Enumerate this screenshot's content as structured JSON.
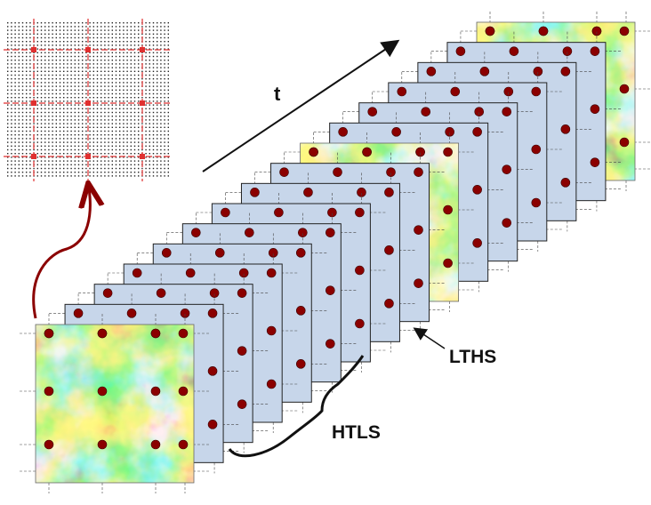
{
  "labels": {
    "time_axis": "t",
    "ltns": "LTHS",
    "htls": "HTLS"
  },
  "colors": {
    "sample_point": "#8b0000",
    "coarse_grid_line": "#e03030",
    "fine_grid_dot": "#222222",
    "frame_fill": "#c7d6ea",
    "frame_stroke": "#222222",
    "dashed_grid": "#444444",
    "arrow": "#111111",
    "curved_arrow": "#8b0000",
    "field_colormap": [
      "#1a2fd6",
      "#2a86e8",
      "#39d3e0",
      "#4fe08a",
      "#c8f23a",
      "#ffd23a",
      "#f57a2a",
      "#c82a1a"
    ]
  },
  "diagram": {
    "frame_count_behind": 14,
    "coarse_points_per_side": 4
  }
}
